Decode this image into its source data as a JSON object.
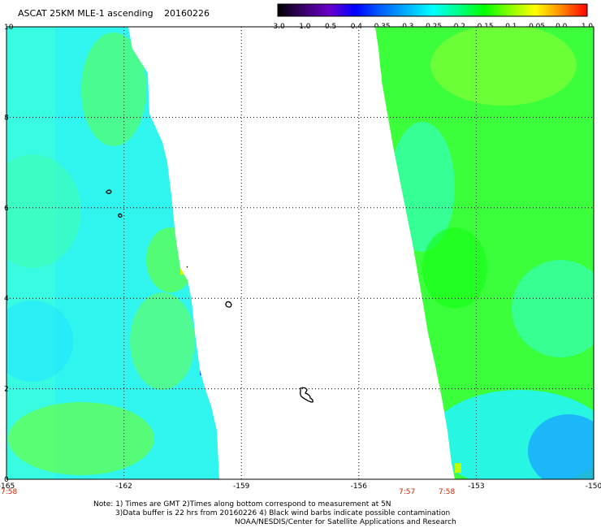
{
  "header": {
    "title": "ASCAT 25KM MLE-1 ascending",
    "date": "20160226"
  },
  "colorbar": {
    "ticks": [
      "-3.0",
      "-1.0",
      "-0.5",
      "-0.4",
      "-0.35",
      "-0.3",
      "-0.25",
      "-0.2",
      "-0.15",
      "-0.1",
      "-0.05",
      "0.0",
      "1.0"
    ],
    "colors": [
      "#000000",
      "#3a006b",
      "#6a00c8",
      "#0000ff",
      "#0060ff",
      "#00b0ff",
      "#00ffff",
      "#00ff88",
      "#00ff00",
      "#88ff00",
      "#ffff00",
      "#ff8800",
      "#ff0000"
    ]
  },
  "map": {
    "y_ticks": [
      "10",
      "8",
      "6",
      "4",
      "2",
      "0"
    ],
    "x_ticks": [
      "-165",
      "-162",
      "-159",
      "-156",
      "-153",
      "-150"
    ],
    "times": [
      "7:58",
      "7:57",
      "7:58"
    ]
  },
  "notes": {
    "line1": "Note: 1) Times are GMT 2)Times along bottom correspond to measurement at 5N",
    "line2": "3)Data buffer is 22 hrs from 20160226 4) Black wind barbs indicate possible contamination",
    "line3": "NOAA/NESDIS/Center for Satellite Applications and Research"
  }
}
